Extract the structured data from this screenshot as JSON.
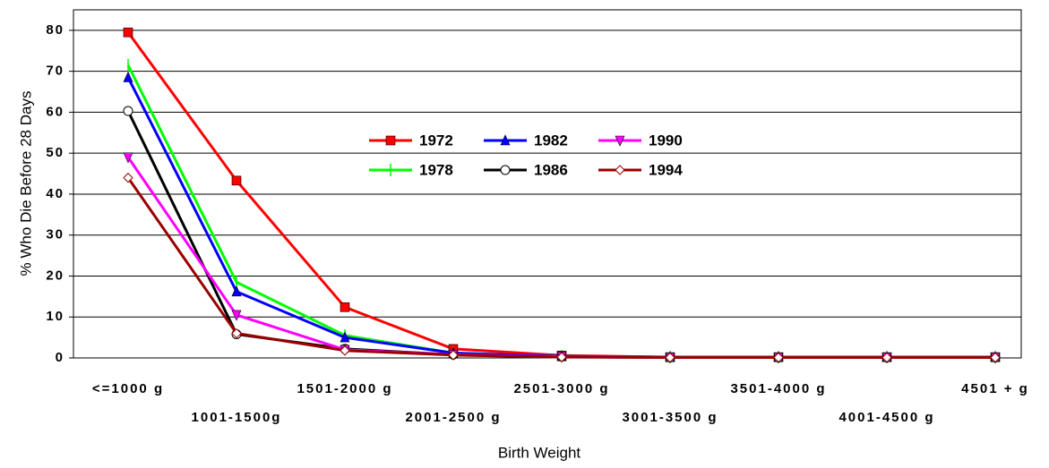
{
  "chart_data": {
    "type": "line",
    "x_label": "Birth Weight",
    "y_label": "% Who Die Before 28 Days",
    "categories": [
      "<=1000 g",
      "1001-1500g",
      "1501-2000 g",
      "2001-2500 g",
      "2501-3000 g",
      "3001-3500 g",
      "3501-4000 g",
      "4001-4500 g",
      "4501 + g"
    ],
    "series": [
      {
        "name": "1972",
        "color": "#ff0000",
        "marker": "square",
        "values": [
          79.5,
          43.3,
          12.4,
          2.2,
          0.6,
          0.2,
          0.2,
          0.2,
          0.2
        ]
      },
      {
        "name": "1978",
        "color": "#00ff00",
        "marker": "plus",
        "values": [
          71.5,
          18.5,
          5.5,
          1.2,
          0.4,
          0.2,
          0.2,
          0.2,
          0.2
        ]
      },
      {
        "name": "1982",
        "color": "#0000ff",
        "marker": "triangle",
        "values": [
          68.5,
          16.2,
          5.0,
          1.2,
          0.4,
          0.2,
          0.2,
          0.2,
          0.2
        ]
      },
      {
        "name": "1986",
        "color": "#000000",
        "marker": "circle",
        "values": [
          60.3,
          5.8,
          2.2,
          0.8,
          0.3,
          0.1,
          0.1,
          0.1,
          0.1
        ]
      },
      {
        "name": "1990",
        "color": "#ff00ff",
        "marker": "triangle-down",
        "values": [
          49.0,
          10.5,
          2.0,
          0.8,
          0.3,
          0.1,
          0.1,
          0.1,
          0.1
        ]
      },
      {
        "name": "1994",
        "color": "#990000",
        "marker": "diamond",
        "values": [
          44.0,
          6.0,
          1.8,
          0.7,
          0.2,
          0.1,
          0.1,
          0.1,
          0.1
        ]
      }
    ],
    "ylim": [
      0,
      85
    ],
    "yticks": [
      0,
      10,
      20,
      30,
      40,
      50,
      60,
      70,
      80
    ],
    "grid": true
  }
}
